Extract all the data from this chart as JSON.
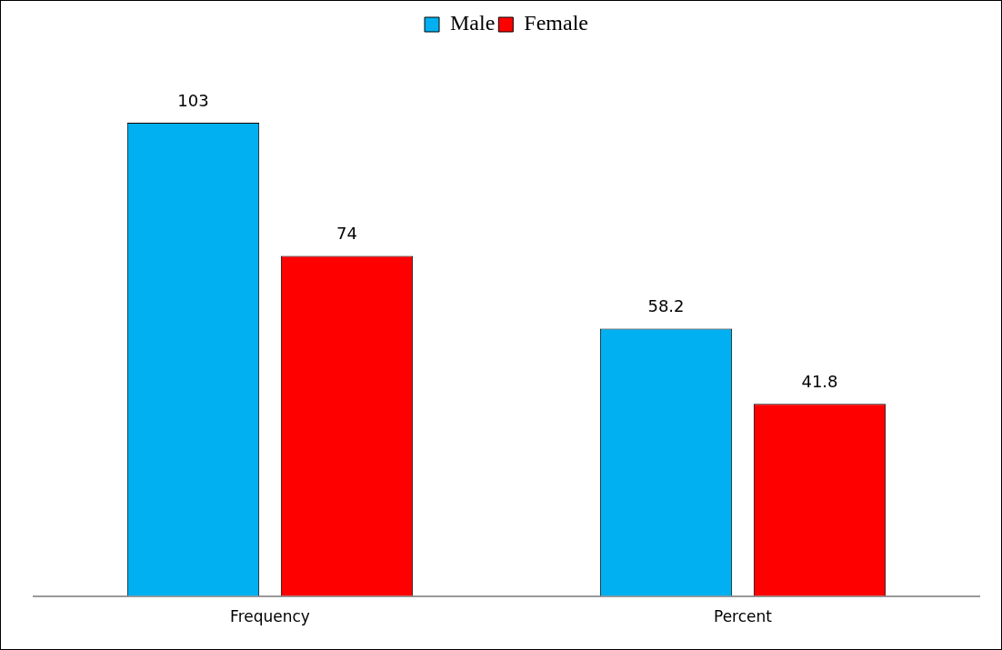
{
  "chart_data": {
    "type": "bar",
    "categories": [
      "Frequency",
      "Percent"
    ],
    "series": [
      {
        "name": "Male",
        "color": "#00b0f0",
        "values": [
          103,
          58.2
        ]
      },
      {
        "name": "Female",
        "color": "#ff0000",
        "values": [
          74,
          41.8
        ]
      }
    ],
    "data_labels": true,
    "legend": "top",
    "grid": false
  }
}
